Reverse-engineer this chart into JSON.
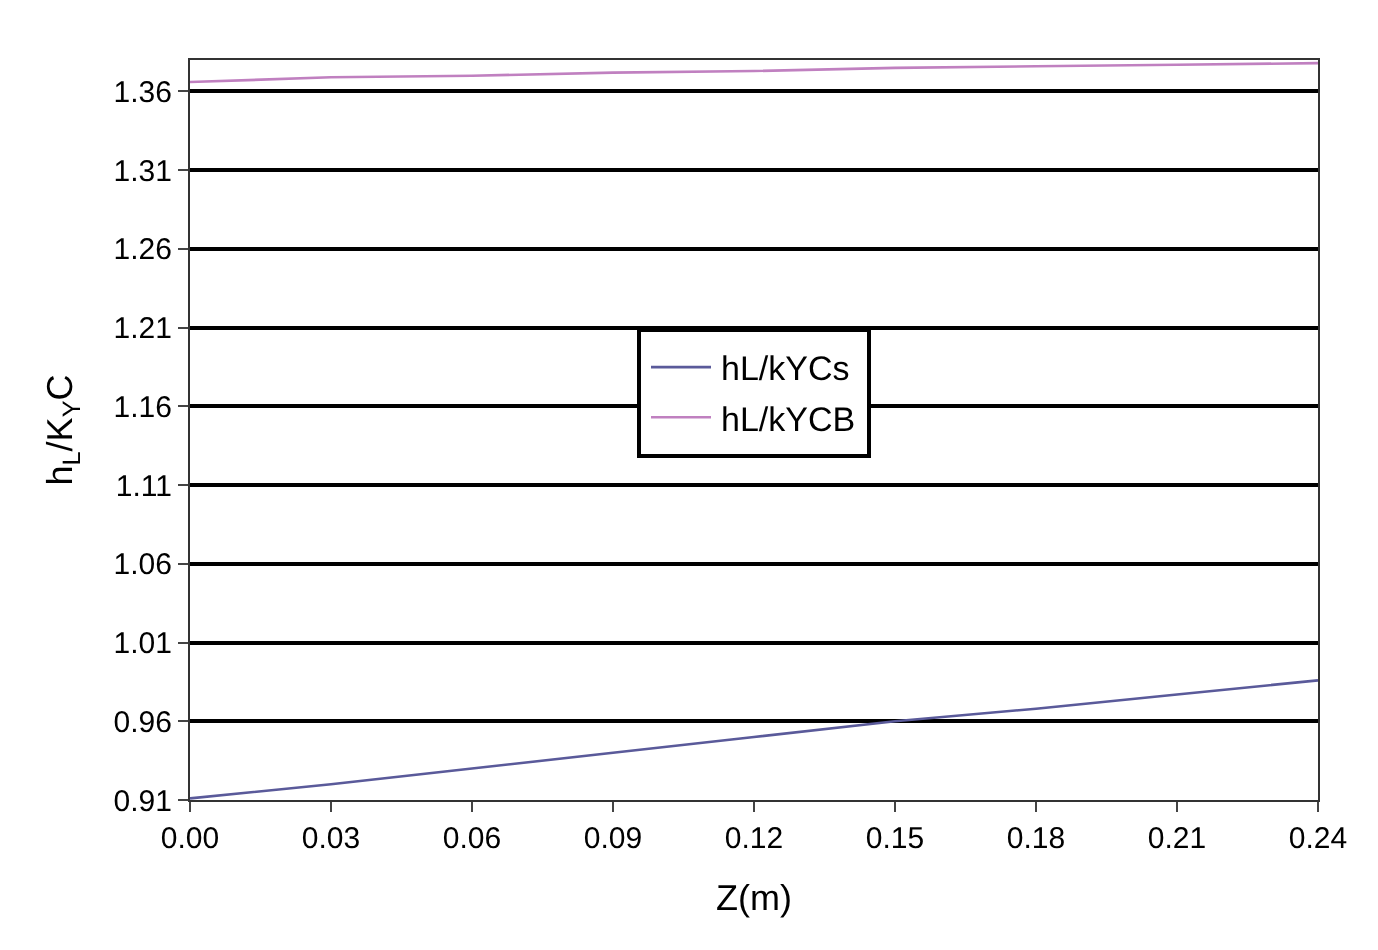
{
  "chart_data": {
    "type": "line",
    "xlabel": "Z(m)",
    "ylabel": "h$_{L}$/K$_{Y}$C",
    "x": [
      0,
      0.03,
      0.06,
      0.09,
      0.12,
      0.15,
      0.18,
      0.21,
      0.24
    ],
    "series": [
      {
        "name": "hL/kYCs",
        "color": "#5a5a9a",
        "values": [
          0.911,
          0.92,
          0.93,
          0.94,
          0.95,
          0.96,
          0.968,
          0.977,
          0.986
        ]
      },
      {
        "name": "hL/kYCB",
        "color": "#c080c0",
        "values": [
          1.366,
          1.369,
          1.37,
          1.372,
          1.373,
          1.375,
          1.376,
          1.377,
          1.378
        ]
      }
    ],
    "xlim": [
      0,
      0.24
    ],
    "xticks": [
      {
        "value": 0,
        "label": "0.00"
      },
      0.03,
      0.06,
      0.09,
      0.12,
      0.15,
      0.18,
      0.21,
      0.24
    ],
    "ylim": [
      0.91,
      1.38
    ],
    "yticks": [
      0.91,
      0.96,
      1.01,
      1.06,
      1.11,
      1.16,
      1.21,
      1.26,
      1.31,
      1.36
    ],
    "grid": "y",
    "legend": "center",
    "marker": "none",
    "line_style": "solid"
  }
}
